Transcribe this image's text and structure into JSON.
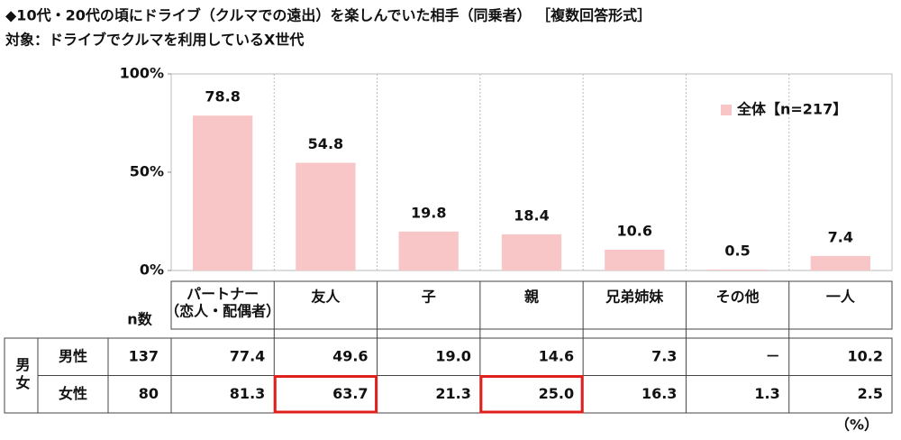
{
  "title": "◆10代・20代の頃にドライブ（クルマでの遠出）を楽しんでいた相手（同乗者） ［複数回答形式］",
  "subtitle": "対象：ドライブでクルマを利用しているX世代",
  "chart_data": {
    "type": "bar",
    "categories": [
      "パートナー",
      "友人",
      "子",
      "親",
      "兄弟姉妹",
      "その他",
      "一人"
    ],
    "category_notes": [
      "（恋人・配偶者）",
      null,
      null,
      null,
      null,
      null,
      null
    ],
    "series": [
      {
        "name": "全体【n=217】",
        "color": "#f8c6c6",
        "values": [
          78.8,
          54.8,
          19.8,
          18.4,
          10.6,
          0.5,
          7.4
        ]
      }
    ],
    "ylim": [
      0,
      100
    ],
    "yticks": [
      {
        "value": 0,
        "label": "0%"
      },
      {
        "value": 50,
        "label": "50%"
      },
      {
        "value": 100,
        "label": "100%"
      }
    ],
    "grid": true,
    "legend": "top-right"
  },
  "table": {
    "group_label": "男女",
    "n_label": "n数",
    "rows": [
      {
        "label": "男性",
        "n": "137",
        "values": [
          "77.4",
          "49.6",
          "19.0",
          "14.6",
          "7.3",
          "－",
          "10.2"
        ]
      },
      {
        "label": "女性",
        "n": "80",
        "values": [
          "81.3",
          "63.7",
          "21.3",
          "25.0",
          "16.3",
          "1.3",
          "2.5"
        ]
      }
    ],
    "highlight": [
      {
        "row": 1,
        "col": 1
      },
      {
        "row": 1,
        "col": 3
      }
    ],
    "highlight_color": "#e0201c",
    "unit": "（%）"
  }
}
